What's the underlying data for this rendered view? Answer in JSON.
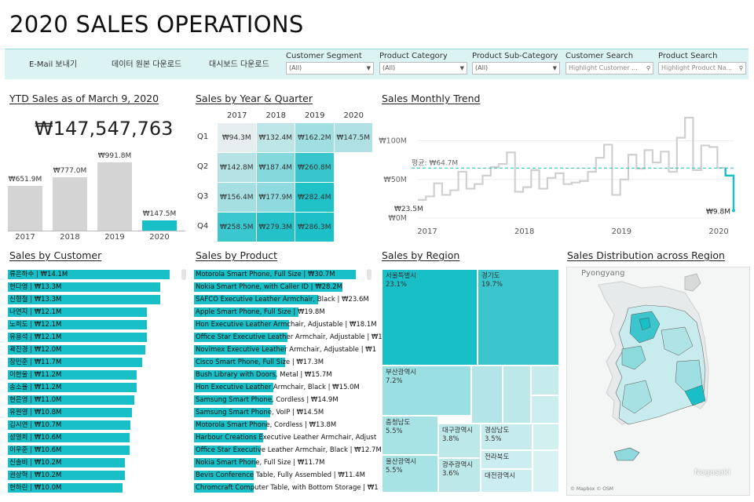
{
  "title": "2020 SALES OPERATIONS",
  "toolbar": {
    "email_label": "E-Mail 보내기",
    "data_download_label": "데이터 원본 다운로드",
    "dashboard_download_label": "대시보드 다운로드",
    "filters": [
      {
        "label": "Customer Segment",
        "value": "(All)"
      },
      {
        "label": "Product Category",
        "value": "(All)"
      },
      {
        "label": "Product Sub-Category",
        "value": "(All)"
      }
    ],
    "customer_search": {
      "label": "Customer Search",
      "placeholder": "Highlight Customer ..."
    },
    "product_search": {
      "label": "Product Search",
      "placeholder": "Highlight Product Na..."
    }
  },
  "ytd": {
    "title": "YTD Sales as of March 9, 2020",
    "value": "₩147,547,763",
    "years": [
      "2017",
      "2018",
      "2019",
      "2020"
    ],
    "labels": [
      "₩651.9M",
      "₩777.0M",
      "₩991.8M",
      "₩147.5M"
    ],
    "values_m": [
      651.9,
      777.0,
      991.8,
      147.5
    ]
  },
  "quarter": {
    "title": "Sales by Year & Quarter",
    "years": [
      "2017",
      "2018",
      "2019",
      "2020"
    ],
    "quarters": [
      "Q1",
      "Q2",
      "Q3",
      "Q4"
    ],
    "cells": [
      [
        "₩94.3M",
        "₩132.4M",
        "₩162.2M",
        "₩147.5M"
      ],
      [
        "₩142.8M",
        "₩187.4M",
        "₩260.8M",
        ""
      ],
      [
        "₩156.4M",
        "₩177.9M",
        "₩282.4M",
        ""
      ],
      [
        "₩258.5M",
        "₩279.3M",
        "₩286.3M",
        ""
      ]
    ],
    "values_m": [
      [
        94.3,
        132.4,
        162.2,
        147.5
      ],
      [
        142.8,
        187.4,
        260.8,
        null
      ],
      [
        156.4,
        177.9,
        282.4,
        null
      ],
      [
        258.5,
        279.3,
        286.3,
        null
      ]
    ]
  },
  "trend": {
    "title": "Sales Monthly Trend",
    "y_ticks": [
      "₩100M",
      "₩50M",
      "₩0M"
    ],
    "x_ticks": [
      "2017",
      "2018",
      "2019",
      "2020"
    ],
    "avg_label": "평균: ₩64.7M",
    "start_label": "₩23.5M",
    "end_label": "₩9.8M",
    "monthly_m": [
      23.5,
      28,
      45,
      30,
      36,
      60,
      38,
      44,
      55,
      66,
      70,
      85,
      34,
      40,
      62,
      38,
      52,
      58,
      44,
      46,
      48,
      60,
      78,
      95,
      30,
      50,
      82,
      64,
      88,
      72,
      86,
      60,
      104,
      130,
      62,
      94,
      92,
      65,
      55,
      9.8
    ]
  },
  "customers": {
    "title": "Sales by Customer",
    "items": [
      {
        "label": "류은하수 | ₩14.1M",
        "value": 14.1
      },
      {
        "label": "현다영 | ₩13.3M",
        "value": 13.3
      },
      {
        "label": "신형철 | ₩13.3M",
        "value": 13.3
      },
      {
        "label": "나연지 | ₩12.1M",
        "value": 12.1
      },
      {
        "label": "노희도 | ₩12.1M",
        "value": 12.1
      },
      {
        "label": "유용석 | ₩12.1M",
        "value": 12.1
      },
      {
        "label": "곽진경 | ₩12.0M",
        "value": 12.0
      },
      {
        "label": "장민준 | ₩11.7M",
        "value": 11.7
      },
      {
        "label": "이한울 | ₩11.2M",
        "value": 11.2
      },
      {
        "label": "송소율 | ₩11.2M",
        "value": 11.2
      },
      {
        "label": "현은영 | ₩11.0M",
        "value": 11.0
      },
      {
        "label": "유원영 | ₩10.8M",
        "value": 10.8
      },
      {
        "label": "김시연 | ₩10.7M",
        "value": 10.7
      },
      {
        "label": "성영희 | ₩10.6M",
        "value": 10.6
      },
      {
        "label": "이우준 | ₩10.6M",
        "value": 10.6
      },
      {
        "label": "신솔비 | ₩10.2M",
        "value": 10.2
      },
      {
        "label": "권상혁 | ₩10.2M",
        "value": 10.2
      },
      {
        "label": "현하린 | ₩10.0M",
        "value": 10.0
      }
    ]
  },
  "products": {
    "title": "Sales by Product",
    "items": [
      {
        "label": "Motorola Smart Phone, Full Size | ₩30.7M",
        "value": 30.7
      },
      {
        "label": "Nokia Smart Phone, with Caller ID | ₩28.2M",
        "value": 28.2
      },
      {
        "label": "SAFCO Executive Leather Armchair, Black | ₩23.6M",
        "value": 23.6
      },
      {
        "label": "Apple Smart Phone, Full Size | ₩19.8M",
        "value": 19.8
      },
      {
        "label": "Hon Executive Leather Armchair, Adjustable | ₩18.1M",
        "value": 18.1
      },
      {
        "label": "Office Star Executive Leather Armchair, Adjustable | ₩1",
        "value": 17.8
      },
      {
        "label": "Novimex Executive Leather Armchair, Adjustable | ₩1",
        "value": 17.5
      },
      {
        "label": "Cisco Smart Phone, Full Size | ₩17.3M",
        "value": 17.3
      },
      {
        "label": "Bush Library with Doors, Metal | ₩15.7M",
        "value": 15.7
      },
      {
        "label": "Hon Executive Leather Armchair, Black | ₩15.0M",
        "value": 15.0
      },
      {
        "label": "Samsung Smart Phone, Cordless | ₩14.9M",
        "value": 14.9
      },
      {
        "label": "Samsung Smart Phone, VoIP | ₩14.5M",
        "value": 14.5
      },
      {
        "label": "Motorola Smart Phone, Cordless | ₩13.8M",
        "value": 13.8
      },
      {
        "label": "Harbour Creations Executive Leather Armchair, Adjust",
        "value": 13.1
      },
      {
        "label": "Office Star Executive Leather Armchair, Black | ₩12.7M",
        "value": 12.7
      },
      {
        "label": "Nokia Smart Phone, Full Size | ₩11.7M",
        "value": 11.7
      },
      {
        "label": "Bevis Conference Table, Fully Assembled | ₩11.4M",
        "value": 11.4
      },
      {
        "label": "Chromcraft Computer Table, with Bottom Storage | ₩1",
        "value": 11.3
      }
    ]
  },
  "regions": {
    "title": "Sales by Region",
    "items": [
      {
        "name": "서울특별시",
        "pct": "23.1%"
      },
      {
        "name": "경기도",
        "pct": "19.7%"
      },
      {
        "name": "부산광역시",
        "pct": "7.2%"
      },
      {
        "name": "충청남도",
        "pct": "5.5%"
      },
      {
        "name": "울산광역시",
        "pct": "5.5%"
      },
      {
        "name": "대구광역시",
        "pct": "3.8%"
      },
      {
        "name": "광주광역시",
        "pct": "3.6%"
      },
      {
        "name": "경상남도",
        "pct": "3.5%"
      },
      {
        "name": "전라북도",
        "pct": ""
      },
      {
        "name": "대전광역시",
        "pct": ""
      }
    ]
  },
  "map": {
    "title": "Sales Distribution across Region",
    "label_north": "Pyongyang",
    "label_south": "Nagasaki",
    "attribution": "© Mapbox © OSM"
  },
  "colors": {
    "accent": "#19bfc6",
    "light": "#bde8ea",
    "grey": "#d4d4d4"
  }
}
